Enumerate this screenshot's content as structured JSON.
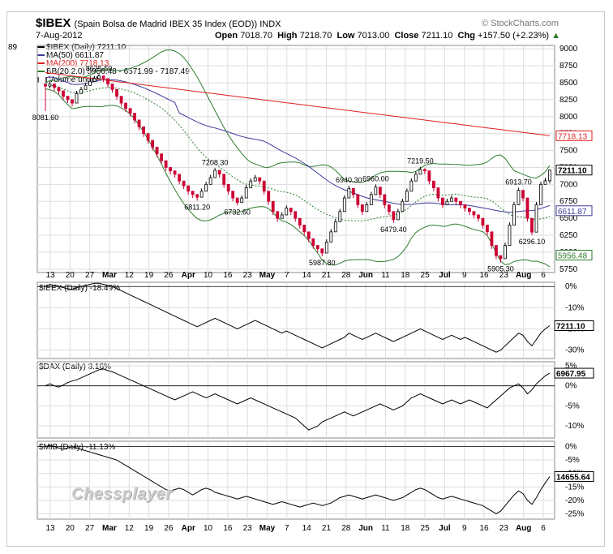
{
  "header": {
    "title": "$IBEX",
    "subtitle": "(Spain Bolsa de Madrid IBEX 35 Index (EOD))  INDX",
    "date": "7-Aug-2012",
    "open_label": "Open",
    "open": "7018.70",
    "high_label": "High",
    "high": "7218.70",
    "low_label": "Low",
    "low": "7013.00",
    "close_label": "Close",
    "close": "7211.10",
    "chg_label": "Chg",
    "chg": "+157.50 (+2.23%)",
    "brand": "© StockCharts.com"
  },
  "watermark": "Chessplayer",
  "legend": {
    "ibex": "$IBEX (Daily) 7211.10",
    "ma50": "MA(50) 6611.87",
    "ma200": "MA(200) 7718.13",
    "bb": "BB(20,2.0) 5956.48 - 6571.99 - 7187.49",
    "volume": "Volume undef",
    "left_cut": "89"
  },
  "colors": {
    "up": "#000000",
    "down": "#cc0033",
    "ma50": "#3c3c9c",
    "ma200": "#e02020",
    "bb": "#2e7d2e",
    "grid": "#dddddd",
    "badge_border": "#666666"
  },
  "x_axis": {
    "labels": [
      "13",
      "20",
      "27",
      "Mar",
      "12",
      "19",
      "26",
      "Apr",
      "10",
      "16",
      "23",
      "May",
      "7",
      "14",
      "21",
      "28",
      "Jun",
      "11",
      "18",
      "25",
      "Jul",
      "9",
      "16",
      "23",
      "Aug",
      "6"
    ],
    "bold": [
      "Mar",
      "Apr",
      "May",
      "Jun",
      "Jul",
      "Aug"
    ]
  },
  "chart_data": [
    {
      "type": "candlestick",
      "title": "$IBEX (Daily) 7211.10",
      "ylim": [
        5700,
        9050
      ],
      "y_ticks": [
        5750,
        6000,
        6250,
        6500,
        6750,
        7000,
        7250,
        7500,
        7750,
        8000,
        8250,
        8500,
        8750,
        9000
      ],
      "close_values": [
        8450,
        8480,
        8430,
        8380,
        8300,
        8250,
        8200,
        8340,
        8400,
        8460,
        8520,
        8560,
        8600,
        8560,
        8480,
        8400,
        8300,
        8200,
        8120,
        8050,
        7950,
        7850,
        7750,
        7650,
        7550,
        7450,
        7350,
        7250,
        7200,
        7150,
        7050,
        6980,
        6900,
        6850,
        6811.2,
        6900,
        7000,
        7100,
        7208.3,
        7150,
        7000,
        6900,
        6800,
        6732.6,
        6800,
        6950,
        7050,
        7100,
        7050,
        6900,
        6750,
        6600,
        6500,
        6550,
        6650,
        6600,
        6500,
        6400,
        6300,
        6200,
        6100,
        6050,
        5987.8,
        6150,
        6300,
        6450,
        6600,
        6800,
        6940.3,
        6850,
        6700,
        6600,
        6700,
        6850,
        6960,
        6850,
        6700,
        6600,
        6479.4,
        6600,
        6750,
        6900,
        7050,
        7150,
        7219.5,
        7200,
        7050,
        6950,
        6800,
        6700,
        6750,
        6800,
        6750,
        6700,
        6650,
        6600,
        6550,
        6500,
        6400,
        6300,
        6100,
        5950,
        5905.3,
        6100,
        6400,
        6700,
        6913.7,
        6800,
        6500,
        6296.1,
        6700,
        7000,
        7053.6,
        7211.1
      ],
      "high_values": [
        8480,
        8520,
        8470,
        8420,
        8340,
        8290,
        8240,
        8380,
        8440,
        8500,
        8560,
        8600,
        8625.5,
        8600,
        8520,
        8440,
        8340,
        8240,
        8160,
        8090,
        7990,
        7890,
        7790,
        7690,
        7590,
        7490,
        7390,
        7290,
        7240,
        7190,
        7090,
        7020,
        6940,
        6890,
        6860,
        6940,
        7040,
        7140,
        7240,
        7190,
        7040,
        6940,
        6840,
        6780,
        6840,
        6990,
        7090,
        7140,
        7090,
        6940,
        6790,
        6640,
        6540,
        6590,
        6690,
        6640,
        6540,
        6440,
        6340,
        6240,
        6140,
        6090,
        6030,
        6190,
        6340,
        6490,
        6640,
        6840,
        6980,
        6890,
        6740,
        6640,
        6740,
        6890,
        7000,
        6890,
        6740,
        6640,
        6520,
        6640,
        6790,
        6940,
        7090,
        7190,
        7260,
        7240,
        7090,
        6990,
        6840,
        6740,
        6790,
        6840,
        6790,
        6740,
        6690,
        6640,
        6590,
        6540,
        6440,
        6340,
        6140,
        5990,
        5950,
        6140,
        6440,
        6740,
        6950,
        6840,
        6540,
        6340,
        6740,
        7040,
        7100,
        7218.7
      ],
      "low_values": [
        8081.6,
        8420,
        8380,
        8330,
        8250,
        8200,
        8150,
        8290,
        8350,
        8410,
        8470,
        8510,
        8550,
        8510,
        8430,
        8350,
        8250,
        8150,
        8070,
        8000,
        7900,
        7800,
        7700,
        7600,
        7500,
        7400,
        7300,
        7200,
        7150,
        7100,
        7000,
        6930,
        6850,
        6800,
        6760,
        6850,
        6950,
        7050,
        7160,
        7100,
        6950,
        6850,
        6750,
        6690,
        6750,
        6900,
        7000,
        7050,
        7000,
        6850,
        6700,
        6550,
        6450,
        6500,
        6600,
        6550,
        6450,
        6350,
        6250,
        6150,
        6050,
        6000,
        5940,
        6100,
        6250,
        6400,
        6550,
        6750,
        6890,
        6800,
        6650,
        6550,
        6650,
        6800,
        6910,
        6800,
        6650,
        6550,
        6430,
        6550,
        6700,
        6850,
        7000,
        7100,
        7170,
        7150,
        7000,
        6900,
        6750,
        6650,
        6700,
        6750,
        6700,
        6650,
        6600,
        6550,
        6500,
        6450,
        6350,
        6250,
        6050,
        5900,
        5850,
        6050,
        6350,
        6650,
        6860,
        6750,
        6450,
        6250,
        6650,
        6950,
        7013,
        7013
      ]
    },
    {
      "type": "line",
      "title": "$IBEX (Daily) -18.49%",
      "ylim": [
        -34,
        2
      ],
      "y_ticks": [
        0,
        -10,
        -20,
        -30
      ],
      "last_value": "7211.10",
      "values": [
        0,
        1,
        0.5,
        0,
        -0.5,
        -1,
        -1.5,
        -0.5,
        0,
        0.5,
        1,
        1.5,
        1.5,
        1,
        0.5,
        0,
        -1,
        -2,
        -3,
        -4,
        -5,
        -6,
        -7,
        -8,
        -9,
        -10,
        -11,
        -12,
        -13,
        -14,
        -15,
        -16,
        -17,
        -18,
        -19,
        -18,
        -17,
        -16,
        -15,
        -16,
        -17,
        -18,
        -19,
        -20,
        -19,
        -18,
        -17,
        -16,
        -17,
        -18,
        -19,
        -20,
        -21,
        -22,
        -21,
        -22,
        -23,
        -24,
        -25,
        -26,
        -27,
        -28,
        -29,
        -28,
        -27,
        -26,
        -25,
        -24,
        -22,
        -23,
        -24,
        -25,
        -24,
        -23,
        -22,
        -23,
        -24,
        -25,
        -26,
        -25,
        -24,
        -23,
        -22,
        -21,
        -20,
        -21,
        -22,
        -23,
        -24,
        -25,
        -24,
        -23,
        -24,
        -25,
        -24,
        -25,
        -26,
        -27,
        -28,
        -29,
        -30,
        -31,
        -30,
        -28,
        -26,
        -24,
        -22,
        -23,
        -26,
        -28,
        -25,
        -22,
        -20,
        -18.49
      ]
    },
    {
      "type": "line",
      "title": "$DAX (Daily) 3.16%",
      "ylim": [
        -13,
        6
      ],
      "y_ticks": [
        5,
        0,
        -5,
        -10
      ],
      "last_value": "6967.95",
      "values": [
        0,
        0.5,
        0,
        -0.3,
        0.2,
        0.8,
        1.2,
        1.5,
        2,
        2.5,
        3,
        3.5,
        4,
        4.2,
        3.8,
        3.5,
        3,
        2.5,
        2,
        1.5,
        1,
        0.5,
        0,
        -0.5,
        -1,
        -1.5,
        -2,
        -2.5,
        -3,
        -3.5,
        -3,
        -2.5,
        -2,
        -1.5,
        -2,
        -2.5,
        -3,
        -2.5,
        -2,
        -2.5,
        -3,
        -3.5,
        -4,
        -4.5,
        -4,
        -3.5,
        -3,
        -3.5,
        -4,
        -4.5,
        -5,
        -5.5,
        -6,
        -6.5,
        -7,
        -7.5,
        -8,
        -9,
        -10,
        -11,
        -10.5,
        -10,
        -9,
        -8.5,
        -8,
        -7.5,
        -7,
        -6.5,
        -7,
        -7.5,
        -7,
        -6.5,
        -6,
        -5.5,
        -5,
        -4.5,
        -5,
        -5.5,
        -6,
        -5.5,
        -5,
        -4,
        -3,
        -2.5,
        -2,
        -2.5,
        -3,
        -3.5,
        -4,
        -4.5,
        -4,
        -3.5,
        -4,
        -4.5,
        -4,
        -3.5,
        -4,
        -4.5,
        -5,
        -5.5,
        -4.5,
        -3.5,
        -2.5,
        -1.5,
        -0.5,
        0,
        0.5,
        -0.5,
        -2,
        -1,
        0.5,
        1.5,
        2.5,
        3.16
      ]
    },
    {
      "type": "line",
      "title": "$MIB (Daily) -11.13%",
      "ylim": [
        -27,
        2
      ],
      "y_ticks": [
        0,
        -5,
        -10,
        -15,
        -20,
        -25
      ],
      "last_value": "14655.64",
      "values": [
        0,
        0.5,
        0,
        -0.5,
        -1,
        -0.5,
        0,
        -0.5,
        -1,
        -1.5,
        -2,
        -2.5,
        -3,
        -3.5,
        -4,
        -4.5,
        -5,
        -6,
        -7,
        -8,
        -9,
        -10,
        -11,
        -12,
        -13,
        -14,
        -15,
        -16,
        -16.5,
        -16,
        -15.5,
        -16,
        -17,
        -18,
        -17,
        -16,
        -15.5,
        -16,
        -17,
        -17.5,
        -18,
        -18.5,
        -19,
        -19.5,
        -19,
        -18.5,
        -19,
        -19.5,
        -20,
        -20.5,
        -21,
        -21.5,
        -21,
        -20.5,
        -21,
        -21.5,
        -22,
        -22.5,
        -22,
        -21.5,
        -21,
        -21.5,
        -22,
        -21.5,
        -21,
        -20,
        -19,
        -18.5,
        -18,
        -18.5,
        -19,
        -19.5,
        -19,
        -18.5,
        -18,
        -18.5,
        -19,
        -19.5,
        -20,
        -19.5,
        -19,
        -18,
        -17,
        -16,
        -15.5,
        -16,
        -17,
        -18,
        -19,
        -19.5,
        -19,
        -18.5,
        -19,
        -19.5,
        -20,
        -20.5,
        -21,
        -21.5,
        -22,
        -23,
        -24,
        -25,
        -24,
        -22,
        -20,
        -18,
        -16.5,
        -17.5,
        -20,
        -21.5,
        -19,
        -16,
        -13.5,
        -11.13
      ]
    }
  ],
  "annotations": {
    "price_labels": [
      {
        "text": "8081.60",
        "i": 0,
        "v": 8081.6,
        "pos": "below"
      },
      {
        "text": "8625.50",
        "i": 12,
        "v": 8625.5,
        "pos": "above"
      },
      {
        "text": "7208.30",
        "i": 38,
        "v": 7240,
        "pos": "above"
      },
      {
        "text": "6811.20",
        "i": 34,
        "v": 6760,
        "pos": "below"
      },
      {
        "text": "6732.60",
        "i": 43,
        "v": 6690,
        "pos": "below"
      },
      {
        "text": "5987.80",
        "i": 62,
        "v": 5940,
        "pos": "below"
      },
      {
        "text": "6940.30",
        "i": 68,
        "v": 6980,
        "pos": "above"
      },
      {
        "text": "6960.00",
        "i": 74,
        "v": 7000,
        "pos": "above"
      },
      {
        "text": "6479.40",
        "i": 78,
        "v": 6430,
        "pos": "below"
      },
      {
        "text": "7219.50",
        "i": 84,
        "v": 7260,
        "pos": "above"
      },
      {
        "text": "5905.30",
        "i": 102,
        "v": 5850,
        "pos": "below"
      },
      {
        "text": "6913.70",
        "i": 106,
        "v": 6950,
        "pos": "above"
      },
      {
        "text": "6296.10",
        "i": 109,
        "v": 6250,
        "pos": "below"
      }
    ],
    "badges": [
      {
        "text": "7718.13",
        "v": 7718.13,
        "color": "#e02020"
      },
      {
        "text": "7211.10",
        "v": 7211.1,
        "color": "#000000"
      },
      {
        "text": "6611.87",
        "v": 6611.87,
        "color": "#3c3c9c"
      },
      {
        "text": "5956.48",
        "v": 5956.48,
        "color": "#2e7d2e"
      }
    ]
  }
}
